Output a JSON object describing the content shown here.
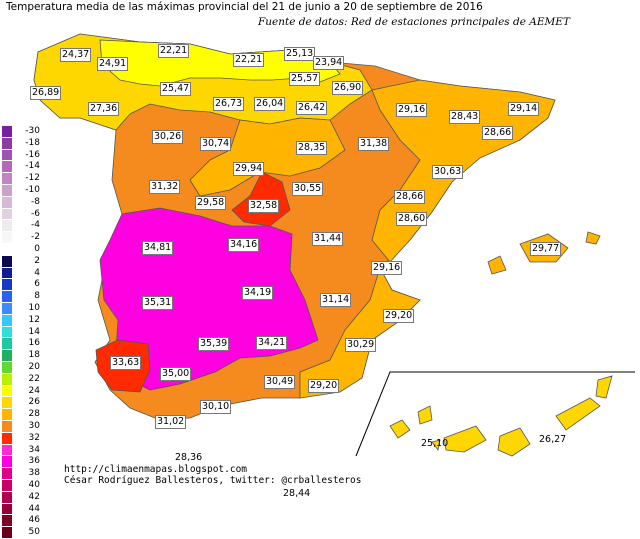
{
  "title": "Temperatura media de las máximas provincial del 21 de junio a 20 de septiembre de 2016",
  "subtitle": "Fuente de datos: Red de estaciones principales de AEMET",
  "credits": {
    "url": "http://climaenmapas.blogspot.com",
    "author": "César Rodríguez Ballesteros, twitter: @crballesteros"
  },
  "legend": [
    {
      "label": "-30",
      "color": "#7a1fa2"
    },
    {
      "label": "-18",
      "color": "#8e3aa6"
    },
    {
      "label": "-16",
      "color": "#9e52b1"
    },
    {
      "label": "-14",
      "color": "#b268bb"
    },
    {
      "label": "-12",
      "color": "#c084c4"
    },
    {
      "label": "-10",
      "color": "#cda0cc"
    },
    {
      "label": "-8",
      "color": "#d7b8d7"
    },
    {
      "label": "-6",
      "color": "#e2cfe2"
    },
    {
      "label": "-4",
      "color": "#ececec"
    },
    {
      "label": "-2",
      "color": "#f7f7f7"
    },
    {
      "label": "0",
      "color": "#ffffff"
    },
    {
      "label": "2",
      "color": "#0a0a50"
    },
    {
      "label": "4",
      "color": "#0f1e8a"
    },
    {
      "label": "6",
      "color": "#1538c8"
    },
    {
      "label": "8",
      "color": "#2a62f0"
    },
    {
      "label": "10",
      "color": "#3c8cff"
    },
    {
      "label": "12",
      "color": "#33c8ff"
    },
    {
      "label": "14",
      "color": "#30e0d8"
    },
    {
      "label": "16",
      "color": "#20c8a0"
    },
    {
      "label": "18",
      "color": "#1fb060"
    },
    {
      "label": "20",
      "color": "#63d82f"
    },
    {
      "label": "22",
      "color": "#b8f000"
    },
    {
      "label": "24",
      "color": "#ffff00"
    },
    {
      "label": "26",
      "color": "#ffd700"
    },
    {
      "label": "28",
      "color": "#ffb400"
    },
    {
      "label": "30",
      "color": "#f58a1e"
    },
    {
      "label": "32",
      "color": "#ff2a00"
    },
    {
      "label": "34",
      "color": "#ff2ad4"
    },
    {
      "label": "36",
      "color": "#ff00e0"
    },
    {
      "label": "38",
      "color": "#e0008c"
    },
    {
      "label": "40",
      "color": "#c8006a"
    },
    {
      "label": "42",
      "color": "#b00050"
    },
    {
      "label": "44",
      "color": "#960038"
    },
    {
      "label": "46",
      "color": "#800028"
    },
    {
      "label": "50",
      "color": "#6a0018"
    }
  ],
  "provinces": [
    {
      "name": "A Coruña",
      "value": "24,37",
      "color": "#ffd700"
    },
    {
      "name": "Lugo",
      "value": "24,91",
      "color": "#ffd700"
    },
    {
      "name": "Asturias",
      "value": "22,21",
      "color": "#ffff00"
    },
    {
      "name": "Cantabria",
      "value": "22,21",
      "color": "#ffff00"
    },
    {
      "name": "Bizkaia",
      "value": "25,13",
      "color": "#ffd700"
    },
    {
      "name": "Gipuzkoa",
      "value": "23,94",
      "color": "#ffff00"
    },
    {
      "name": "Pontevedra",
      "value": "26,89",
      "color": "#ffd700"
    },
    {
      "name": "Álava",
      "value": "25,57",
      "color": "#ffd700"
    },
    {
      "name": "Navarra",
      "value": "26,90",
      "color": "#ffd700"
    },
    {
      "name": "León",
      "value": "25,47",
      "color": "#ffd700"
    },
    {
      "name": "Ourense",
      "value": "27,36",
      "color": "#ffd700"
    },
    {
      "name": "Palencia",
      "value": "26,73",
      "color": "#ffd700"
    },
    {
      "name": "Burgos",
      "value": "26,04",
      "color": "#ffd700"
    },
    {
      "name": "La Rioja",
      "value": "26,42",
      "color": "#ffd700"
    },
    {
      "name": "Huesca",
      "value": "29,16",
      "color": "#ffb400"
    },
    {
      "name": "Lleida",
      "value": "28,43",
      "color": "#ffb400"
    },
    {
      "name": "Girona",
      "value": "29,14",
      "color": "#ffb400"
    },
    {
      "name": "Barcelona",
      "value": "28,66",
      "color": "#ffb400"
    },
    {
      "name": "Zamora",
      "value": "30,26",
      "color": "#f58a1e"
    },
    {
      "name": "Valladolid",
      "value": "30,74",
      "color": "#f58a1e"
    },
    {
      "name": "Soria",
      "value": "28,35",
      "color": "#ffb400"
    },
    {
      "name": "Zaragoza",
      "value": "31,38",
      "color": "#f58a1e"
    },
    {
      "name": "Tarragona",
      "value": "30,63",
      "color": "#f58a1e"
    },
    {
      "name": "Segovia",
      "value": "29,94",
      "color": "#ffb400"
    },
    {
      "name": "Salamanca",
      "value": "31,32",
      "color": "#f58a1e"
    },
    {
      "name": "Guadalajara",
      "value": "30,55",
      "color": "#f58a1e"
    },
    {
      "name": "Teruel",
      "value": "28,66",
      "color": "#ffb400"
    },
    {
      "name": "Ávila",
      "value": "29,58",
      "color": "#ffb400"
    },
    {
      "name": "Madrid",
      "value": "32,58",
      "color": "#ff2a00"
    },
    {
      "name": "Castellón",
      "value": "28,60",
      "color": "#ffb400"
    },
    {
      "name": "Cáceres",
      "value": "34,81",
      "color": "#ff00e0"
    },
    {
      "name": "Toledo",
      "value": "34,16",
      "color": "#ff00e0"
    },
    {
      "name": "Cuenca",
      "value": "31,44",
      "color": "#f58a1e"
    },
    {
      "name": "Illes Balears",
      "value": "29,77",
      "color": "#ffb400"
    },
    {
      "name": "Valencia",
      "value": "29,16",
      "color": "#ffb400"
    },
    {
      "name": "Badajoz",
      "value": "35,31",
      "color": "#ff00e0"
    },
    {
      "name": "Ciudad Real",
      "value": "34,19",
      "color": "#ff00e0"
    },
    {
      "name": "Albacete",
      "value": "31,14",
      "color": "#f58a1e"
    },
    {
      "name": "Alicante",
      "value": "29,20",
      "color": "#ffb400"
    },
    {
      "name": "Huelva",
      "value": "33,63",
      "color": "#ff2a00"
    },
    {
      "name": "Córdoba",
      "value": "35,39",
      "color": "#ff00e0"
    },
    {
      "name": "Jaén",
      "value": "34,21",
      "color": "#ff00e0"
    },
    {
      "name": "Murcia",
      "value": "30,29",
      "color": "#f58a1e"
    },
    {
      "name": "Sevilla",
      "value": "35,00",
      "color": "#ff00e0"
    },
    {
      "name": "Granada",
      "value": "30,49",
      "color": "#f58a1e"
    },
    {
      "name": "Almería",
      "value": "29,20",
      "color": "#ffb400"
    },
    {
      "name": "Málaga",
      "value": "30,10",
      "color": "#f58a1e"
    },
    {
      "name": "Cádiz",
      "value": "31,02",
      "color": "#f58a1e"
    },
    {
      "name": "Ceuta",
      "value": "28,36",
      "color": "#ffb400"
    },
    {
      "name": "Santa Cruz de Tenerife",
      "value": "25,10",
      "color": "#ffd700"
    },
    {
      "name": "Las Palmas",
      "value": "26,27",
      "color": "#ffd700"
    },
    {
      "name": "Melilla",
      "value": "28,44",
      "color": "#ffb400"
    }
  ]
}
